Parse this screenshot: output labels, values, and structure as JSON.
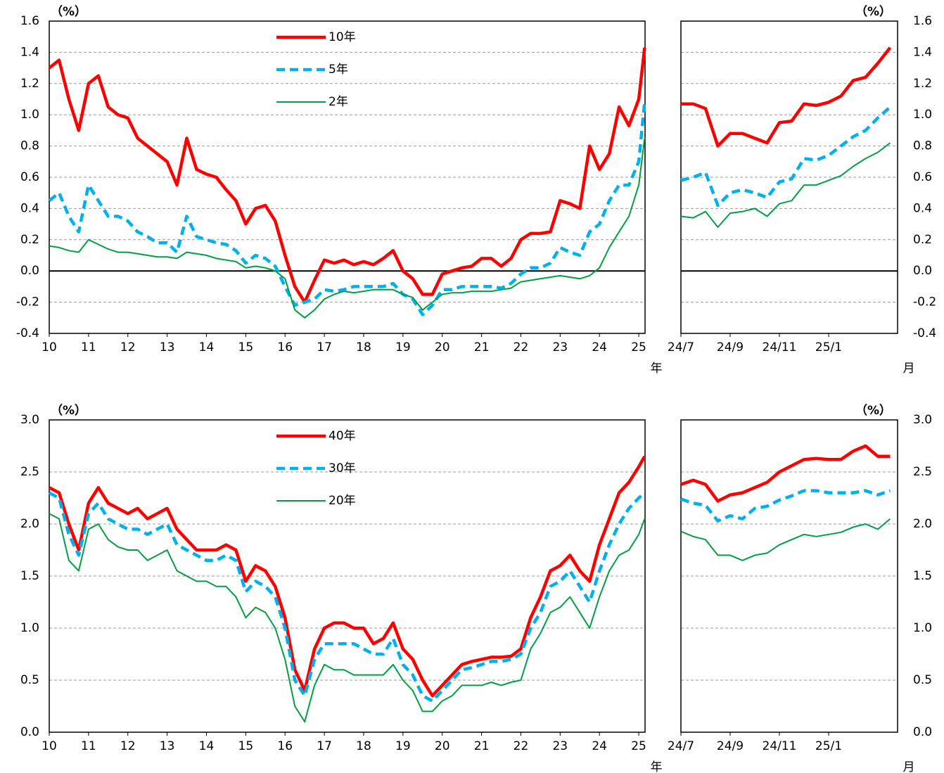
{
  "chart_data": [
    {
      "type": "line",
      "y_unit": "（%）",
      "x_unit": "年",
      "legend": "top-center",
      "x": [
        10,
        10.25,
        10.5,
        10.75,
        11,
        11.25,
        11.5,
        11.75,
        12,
        12.25,
        12.5,
        12.75,
        13,
        13.25,
        13.5,
        13.75,
        14,
        14.25,
        14.5,
        14.75,
        15,
        15.25,
        15.5,
        15.75,
        16,
        16.25,
        16.5,
        16.75,
        17,
        17.25,
        17.5,
        17.75,
        18,
        18.25,
        18.5,
        18.75,
        19,
        19.25,
        19.5,
        19.75,
        20,
        20.25,
        20.5,
        20.75,
        21,
        21.25,
        21.5,
        21.75,
        22,
        22.25,
        22.5,
        22.75,
        23,
        23.25,
        23.5,
        23.75,
        24,
        24.25,
        24.5,
        24.75,
        25,
        25.15
      ],
      "series": [
        {
          "name": "10年",
          "color": "#ff0000",
          "values": [
            1.3,
            1.35,
            1.1,
            0.9,
            1.2,
            1.25,
            1.05,
            1.0,
            0.98,
            0.85,
            0.8,
            0.75,
            0.7,
            0.55,
            0.85,
            0.65,
            0.62,
            0.6,
            0.52,
            0.45,
            0.3,
            0.4,
            0.42,
            0.32,
            0.1,
            -0.1,
            -0.2,
            -0.06,
            0.07,
            0.05,
            0.07,
            0.04,
            0.06,
            0.04,
            0.08,
            0.13,
            0.0,
            -0.05,
            -0.15,
            -0.15,
            -0.02,
            0.0,
            0.02,
            0.03,
            0.08,
            0.08,
            0.03,
            0.08,
            0.2,
            0.24,
            0.24,
            0.25,
            0.45,
            0.43,
            0.4,
            0.8,
            0.65,
            0.75,
            1.05,
            0.93,
            1.1,
            1.43
          ]
        },
        {
          "name": "5年",
          "color": "#00b0f0",
          "values": [
            0.45,
            0.5,
            0.35,
            0.25,
            0.55,
            0.45,
            0.35,
            0.35,
            0.32,
            0.25,
            0.22,
            0.18,
            0.18,
            0.12,
            0.35,
            0.22,
            0.2,
            0.18,
            0.17,
            0.13,
            0.05,
            0.1,
            0.08,
            0.03,
            -0.1,
            -0.22,
            -0.2,
            -0.18,
            -0.12,
            -0.13,
            -0.12,
            -0.1,
            -0.1,
            -0.1,
            -0.1,
            -0.08,
            -0.15,
            -0.18,
            -0.28,
            -0.22,
            -0.12,
            -0.12,
            -0.1,
            -0.1,
            -0.1,
            -0.1,
            -0.11,
            -0.08,
            -0.02,
            0.02,
            0.02,
            0.05,
            0.15,
            0.12,
            0.1,
            0.25,
            0.3,
            0.45,
            0.55,
            0.55,
            0.7,
            1.08
          ]
        },
        {
          "name": "2年",
          "color": "#00a040",
          "values": [
            0.16,
            0.15,
            0.13,
            0.12,
            0.2,
            0.17,
            0.14,
            0.12,
            0.12,
            0.11,
            0.1,
            0.09,
            0.09,
            0.08,
            0.12,
            0.11,
            0.1,
            0.08,
            0.07,
            0.06,
            0.02,
            0.03,
            0.02,
            0.0,
            -0.05,
            -0.25,
            -0.3,
            -0.25,
            -0.18,
            -0.15,
            -0.13,
            -0.14,
            -0.13,
            -0.12,
            -0.12,
            -0.12,
            -0.15,
            -0.17,
            -0.25,
            -0.2,
            -0.15,
            -0.14,
            -0.14,
            -0.13,
            -0.13,
            -0.13,
            -0.12,
            -0.11,
            -0.07,
            -0.06,
            -0.05,
            -0.04,
            -0.03,
            -0.04,
            -0.05,
            -0.03,
            0.02,
            0.15,
            0.25,
            0.35,
            0.55,
            0.85
          ]
        }
      ],
      "xlim": [
        10,
        25.16
      ],
      "xticks": [
        10,
        11,
        12,
        13,
        14,
        15,
        16,
        17,
        18,
        19,
        20,
        21,
        22,
        23,
        24,
        25
      ],
      "ylim": [
        -0.4,
        1.6
      ],
      "yticks": [
        {
          "value": -0.4,
          "label": "-0.4"
        },
        {
          "value": -0.2,
          "label": "-0.2"
        },
        {
          "value": 0,
          "label": "0.0"
        },
        {
          "value": 0.2,
          "label": "0.2"
        },
        {
          "value": 0.4,
          "label": "0.4"
        },
        {
          "value": 0.6,
          "label": "0.6"
        },
        {
          "value": 0.8,
          "label": "0.8"
        },
        {
          "value": 1,
          "label": "1.0"
        },
        {
          "value": 1.2,
          "label": "1.2"
        },
        {
          "value": 1.4,
          "label": "1.4"
        },
        {
          "value": 1.6,
          "label": "1.6"
        }
      ],
      "grid": true
    },
    {
      "type": "line",
      "y_unit": "（%）",
      "x_unit": "月",
      "x": [
        0,
        0.5,
        1,
        1.5,
        2,
        2.5,
        3,
        3.5,
        4,
        4.5,
        5,
        5.5,
        6,
        6.5,
        7,
        7.5,
        8,
        8.5
      ],
      "series": [
        {
          "color": "#ff0000",
          "values": [
            1.07,
            1.07,
            1.04,
            0.8,
            0.88,
            0.88,
            0.85,
            0.82,
            0.95,
            0.96,
            1.07,
            1.06,
            1.08,
            1.12,
            1.22,
            1.24,
            1.33,
            1.43
          ]
        },
        {
          "color": "#00b0f0",
          "values": [
            0.58,
            0.6,
            0.63,
            0.42,
            0.5,
            0.52,
            0.5,
            0.47,
            0.57,
            0.59,
            0.72,
            0.71,
            0.74,
            0.8,
            0.86,
            0.9,
            0.98,
            1.05
          ]
        },
        {
          "color": "#00a040",
          "values": [
            0.35,
            0.34,
            0.38,
            0.28,
            0.37,
            0.38,
            0.4,
            0.35,
            0.43,
            0.45,
            0.55,
            0.55,
            0.58,
            0.61,
            0.67,
            0.72,
            0.76,
            0.82
          ]
        }
      ],
      "xlim": [
        0,
        8.8
      ],
      "xticks": [
        {
          "value": 0,
          "label": "24/7"
        },
        {
          "value": 2,
          "label": "24/9"
        },
        {
          "value": 4,
          "label": "24/11"
        },
        {
          "value": 6,
          "label": "25/1"
        }
      ],
      "ylim": [
        -0.4,
        1.6
      ],
      "yticks": [
        {
          "value": -0.4,
          "label": "-0.4"
        },
        {
          "value": -0.2,
          "label": "-0.2"
        },
        {
          "value": 0,
          "label": "0.0"
        },
        {
          "value": 0.2,
          "label": "0.2"
        },
        {
          "value": 0.4,
          "label": "0.4"
        },
        {
          "value": 0.6,
          "label": "0.6"
        },
        {
          "value": 0.8,
          "label": "0.8"
        },
        {
          "value": 1,
          "label": "1.0"
        },
        {
          "value": 1.2,
          "label": "1.2"
        },
        {
          "value": 1.4,
          "label": "1.4"
        },
        {
          "value": 1.6,
          "label": "1.6"
        }
      ],
      "grid": true
    },
    {
      "type": "line",
      "y_unit": "（%）",
      "x_unit": "年",
      "legend": "top-center",
      "x": [
        10,
        10.25,
        10.5,
        10.75,
        11,
        11.25,
        11.5,
        11.75,
        12,
        12.25,
        12.5,
        12.75,
        13,
        13.25,
        13.5,
        13.75,
        14,
        14.25,
        14.5,
        14.75,
        15,
        15.25,
        15.5,
        15.75,
        16,
        16.25,
        16.5,
        16.75,
        17,
        17.25,
        17.5,
        17.75,
        18,
        18.25,
        18.5,
        18.75,
        19,
        19.25,
        19.5,
        19.75,
        20,
        20.25,
        20.5,
        20.75,
        21,
        21.25,
        21.5,
        21.75,
        22,
        22.25,
        22.5,
        22.75,
        23,
        23.25,
        23.5,
        23.75,
        24,
        24.25,
        24.5,
        24.75,
        25,
        25.15
      ],
      "series": [
        {
          "name": "40年",
          "color": "#ff0000",
          "values": [
            2.35,
            2.3,
            2.0,
            1.75,
            2.2,
            2.35,
            2.2,
            2.15,
            2.1,
            2.15,
            2.05,
            2.1,
            2.15,
            1.95,
            1.85,
            1.75,
            1.75,
            1.75,
            1.8,
            1.75,
            1.45,
            1.6,
            1.55,
            1.4,
            1.1,
            0.6,
            0.4,
            0.8,
            1.0,
            1.05,
            1.05,
            1.0,
            1.0,
            0.85,
            0.9,
            1.05,
            0.8,
            0.7,
            0.5,
            0.35,
            0.45,
            0.55,
            0.65,
            0.68,
            0.7,
            0.72,
            0.72,
            0.73,
            0.8,
            1.1,
            1.3,
            1.55,
            1.6,
            1.7,
            1.55,
            1.45,
            1.8,
            2.05,
            2.3,
            2.4,
            2.55,
            2.65
          ]
        },
        {
          "name": "30年",
          "color": "#00b0f0",
          "values": [
            2.3,
            2.25,
            1.9,
            1.7,
            2.1,
            2.2,
            2.05,
            2.0,
            1.95,
            1.95,
            1.9,
            1.95,
            2.0,
            1.8,
            1.75,
            1.7,
            1.65,
            1.65,
            1.7,
            1.65,
            1.35,
            1.45,
            1.4,
            1.3,
            1.0,
            0.5,
            0.35,
            0.7,
            0.85,
            0.85,
            0.85,
            0.85,
            0.8,
            0.75,
            0.75,
            0.9,
            0.65,
            0.55,
            0.35,
            0.3,
            0.4,
            0.5,
            0.6,
            0.62,
            0.65,
            0.68,
            0.68,
            0.7,
            0.75,
            1.0,
            1.15,
            1.4,
            1.45,
            1.55,
            1.4,
            1.25,
            1.55,
            1.8,
            2.0,
            2.15,
            2.25,
            2.3
          ]
        },
        {
          "name": "20年",
          "color": "#00a040",
          "values": [
            2.1,
            2.05,
            1.65,
            1.55,
            1.95,
            2.0,
            1.85,
            1.78,
            1.75,
            1.75,
            1.65,
            1.7,
            1.75,
            1.55,
            1.5,
            1.45,
            1.45,
            1.4,
            1.4,
            1.3,
            1.1,
            1.2,
            1.15,
            1.0,
            0.7,
            0.25,
            0.1,
            0.45,
            0.65,
            0.6,
            0.6,
            0.55,
            0.55,
            0.55,
            0.55,
            0.65,
            0.5,
            0.4,
            0.2,
            0.2,
            0.3,
            0.35,
            0.45,
            0.45,
            0.45,
            0.48,
            0.45,
            0.48,
            0.5,
            0.8,
            0.95,
            1.15,
            1.2,
            1.3,
            1.15,
            1.0,
            1.3,
            1.55,
            1.7,
            1.75,
            1.9,
            2.05
          ]
        }
      ],
      "xlim": [
        10,
        25.16
      ],
      "xticks": [
        10,
        11,
        12,
        13,
        14,
        15,
        16,
        17,
        18,
        19,
        20,
        21,
        22,
        23,
        24,
        25
      ],
      "ylim": [
        0,
        3
      ],
      "yticks": [
        {
          "value": 0,
          "label": "0.0"
        },
        {
          "value": 0.5,
          "label": "0.5"
        },
        {
          "value": 1,
          "label": "1.0"
        },
        {
          "value": 1.5,
          "label": "1.5"
        },
        {
          "value": 2,
          "label": "2.0"
        },
        {
          "value": 2.5,
          "label": "2.5"
        },
        {
          "value": 3,
          "label": "3.0"
        }
      ],
      "grid": true
    },
    {
      "type": "line",
      "y_unit": "（%）",
      "x_unit": "月",
      "x": [
        0,
        0.5,
        1,
        1.5,
        2,
        2.5,
        3,
        3.5,
        4,
        4.5,
        5,
        5.5,
        6,
        6.5,
        7,
        7.5,
        8,
        8.5
      ],
      "series": [
        {
          "color": "#ff0000",
          "values": [
            2.38,
            2.42,
            2.38,
            2.22,
            2.28,
            2.3,
            2.35,
            2.4,
            2.5,
            2.56,
            2.62,
            2.63,
            2.62,
            2.62,
            2.7,
            2.75,
            2.65,
            2.65
          ]
        },
        {
          "color": "#00b0f0",
          "values": [
            2.24,
            2.2,
            2.18,
            2.03,
            2.08,
            2.05,
            2.15,
            2.17,
            2.23,
            2.27,
            2.32,
            2.32,
            2.3,
            2.3,
            2.3,
            2.32,
            2.28,
            2.32
          ]
        },
        {
          "color": "#00a040",
          "values": [
            1.93,
            1.88,
            1.85,
            1.7,
            1.7,
            1.65,
            1.7,
            1.72,
            1.8,
            1.85,
            1.9,
            1.88,
            1.9,
            1.92,
            1.97,
            2.0,
            1.95,
            2.05
          ]
        }
      ],
      "xlim": [
        0,
        8.8
      ],
      "xticks": [
        {
          "value": 0,
          "label": "24/7"
        },
        {
          "value": 2,
          "label": "24/9"
        },
        {
          "value": 4,
          "label": "24/11"
        },
        {
          "value": 6,
          "label": "25/1"
        }
      ],
      "ylim": [
        0,
        3
      ],
      "yticks": [
        {
          "value": 0,
          "label": "0.0"
        },
        {
          "value": 0.5,
          "label": "0.5"
        },
        {
          "value": 1,
          "label": "1.0"
        },
        {
          "value": 1.5,
          "label": "1.5"
        },
        {
          "value": 2,
          "label": "2.0"
        },
        {
          "value": 2.5,
          "label": "2.5"
        },
        {
          "value": 3,
          "label": "3.0"
        }
      ],
      "grid": true
    }
  ]
}
